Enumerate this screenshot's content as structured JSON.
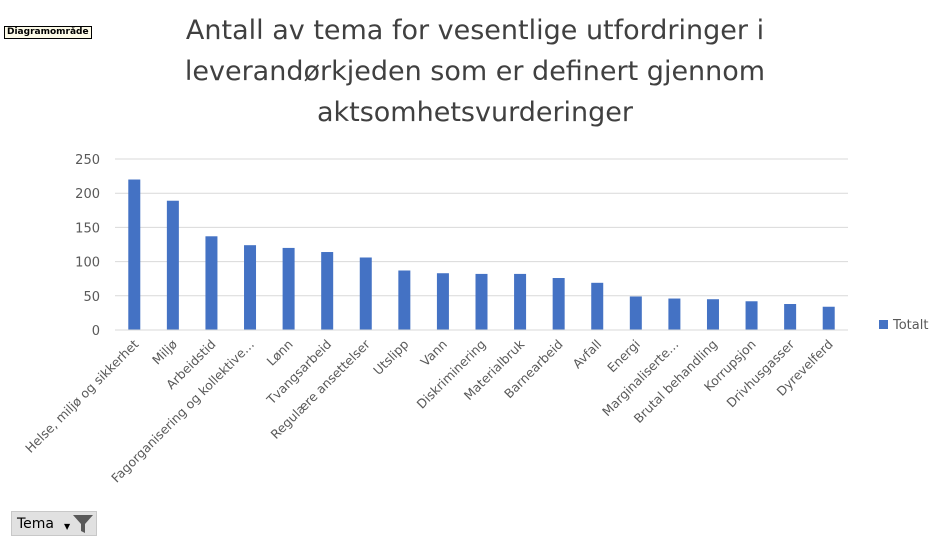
{
  "chart_area_label": "Diagramområde",
  "field_button": {
    "label": "Tema"
  },
  "colors": {
    "bar": "#4472c4",
    "grid": "#d9d9d9",
    "text": "#595959",
    "title": "#404040"
  },
  "chart_data": {
    "type": "bar",
    "title": "Antall  av tema for vesentlige utfordringer i leverandørkjeden som er definert gjennom aktsomhetsvurderinger",
    "title_lines": [
      "Antall  av tema for vesentlige utfordringer i",
      "leverandørkjeden som er definert gjennom",
      "aktsomhetsvurderinger"
    ],
    "categories": [
      "Helse, miljø og sikkerhet",
      "Miljø",
      "Arbeidstid",
      "Fagorganisering og kollektive…",
      "Lønn",
      "Tvangsarbeid",
      "Regulære ansettelser",
      "Utslipp",
      "Vann",
      "Diskriminering",
      "Materialbruk",
      "Barnearbeid",
      "Avfall",
      "Energi",
      "Marginaliserte…",
      "Brutal behandling",
      "Korrupsjon",
      "Drivhusgasser",
      "Dyrevelferd"
    ],
    "series": [
      {
        "name": "Totalt",
        "values": [
          220,
          189,
          137,
          124,
          120,
          114,
          106,
          87,
          83,
          82,
          82,
          76,
          69,
          49,
          46,
          45,
          42,
          38,
          34
        ]
      }
    ],
    "y_ticks": [
      "0",
      "50",
      "100",
      "150",
      "200",
      "250"
    ],
    "ylim": [
      0,
      250
    ],
    "grid": true,
    "legend_position": "right"
  }
}
